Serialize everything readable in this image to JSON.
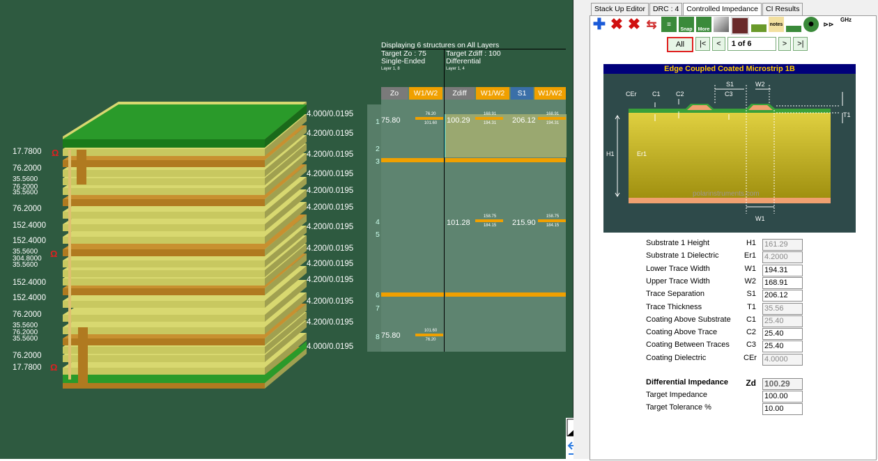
{
  "left_labels": [
    "17.7800",
    "76.2000",
    "35.5600",
    "76.2000",
    "35.5600",
    "76.2000",
    "152.4000",
    "152.4000",
    "35.5600",
    "304.8000",
    "35.5600",
    "152.4000",
    "152.4000",
    "76.2000",
    "35.5600",
    "76.2000",
    "35.5600",
    "76.2000",
    "17.7800"
  ],
  "omega": "Ω",
  "right_labels": [
    "4.000/0.0195",
    "4.200/0.0195",
    "4.200/0.0195",
    "4.200/0.0195",
    "4.200/0.0195",
    "4.200/0.0195",
    "4.200/0.0195",
    "4.200/0.0195",
    "4.200/0.0195",
    "4.200/0.0195",
    "4.200/0.0195",
    "4.200/0.0195",
    "4.000/0.0195"
  ],
  "display": {
    "heading": "Displaying 6 structures on All Layers",
    "se_target": "Target Zo : 75",
    "se_type": "Single-Ended",
    "se_layers": "Layer 1, 8",
    "diff_target": "Target Zdiff : 100",
    "diff_type": "Differential",
    "diff_layers": "Layer 1, 4",
    "cols": [
      "Zo",
      "W1/W2",
      "Zdiff",
      "W1/W2",
      "S1",
      "W1/W2"
    ]
  },
  "layer_numbers": [
    "1",
    "2",
    "3",
    "4",
    "5",
    "6",
    "7",
    "8"
  ],
  "values": {
    "zo1": "75.80",
    "zo8": "75.80",
    "zdiff1": "100.29",
    "s1_1": "206.12",
    "zdiff4": "101.28",
    "s1_4": "215.90",
    "w_l1a": "76.20",
    "w_l1b": "101.60",
    "w_d1a": "168.91",
    "w_d1b": "194.31",
    "w_d4a": "158.75",
    "w_d4b": "184.15",
    "w_l8a": "101.60",
    "w_l8b": "76.20"
  },
  "tabs": [
    "Stack Up Editor",
    "DRC : 4",
    "Controlled Impedance",
    "CI Results"
  ],
  "nav": {
    "all": "All",
    "first": "|<",
    "prev": "<",
    "page": "1 of 6",
    "next": ">",
    "last": ">|"
  },
  "toolbar_icons": [
    "add-icon",
    "delete-icon",
    "delete-all-icon",
    "swap-icon",
    "calc-icon",
    "snap-icon",
    "more-icon",
    "material-icon",
    "table-icon",
    "trace-icon",
    "notes-icon",
    "export-icon",
    "view-icon",
    "diff-icon",
    "ghz-icon"
  ],
  "toolbar_text": {
    "snap": "Snap",
    "more": "More",
    "notes": "notes",
    "ghz": "GHz"
  },
  "diagram": {
    "title": "Edge Coupled Coated Microstrip 1B",
    "watermark": "polarinstruments.com",
    "labels": {
      "CEr": "CEr",
      "C1": "C1",
      "C2": "C2",
      "S1": "S1",
      "C3": "C3",
      "W2": "W2",
      "T1": "T1",
      "H1": "H1",
      "Er1": "Er1",
      "W1": "W1"
    }
  },
  "params": [
    {
      "label": "Substrate 1 Height",
      "sym": "H1",
      "value": "161.29",
      "ro": true
    },
    {
      "label": "Substrate 1 Dielectric",
      "sym": "Er1",
      "value": "4.2000",
      "ro": true
    },
    {
      "label": "Lower Trace Width",
      "sym": "W1",
      "value": "194.31",
      "ro": false
    },
    {
      "label": "Upper Trace Width",
      "sym": "W2",
      "value": "168.91",
      "ro": false
    },
    {
      "label": "Trace Separation",
      "sym": "S1",
      "value": "206.12",
      "ro": false
    },
    {
      "label": "Trace Thickness",
      "sym": "T1",
      "value": "35.56",
      "ro": true
    },
    {
      "label": "Coating Above Substrate",
      "sym": "C1",
      "value": "25.40",
      "ro": true
    },
    {
      "label": "Coating Above Trace",
      "sym": "C2",
      "value": "25.40",
      "ro": false
    },
    {
      "label": "Coating Between Traces",
      "sym": "C3",
      "value": "25.40",
      "ro": false
    },
    {
      "label": "Coating Dielectric",
      "sym": "CEr",
      "value": "4.0000",
      "ro": true
    }
  ],
  "result": {
    "label": "Differential Impedance",
    "sym": "Zd",
    "value": "100.29"
  },
  "target": {
    "label": "Target Impedance",
    "value": "100.00"
  },
  "tolerance": {
    "label": "Target Tolerance %",
    "value": "10.00"
  }
}
